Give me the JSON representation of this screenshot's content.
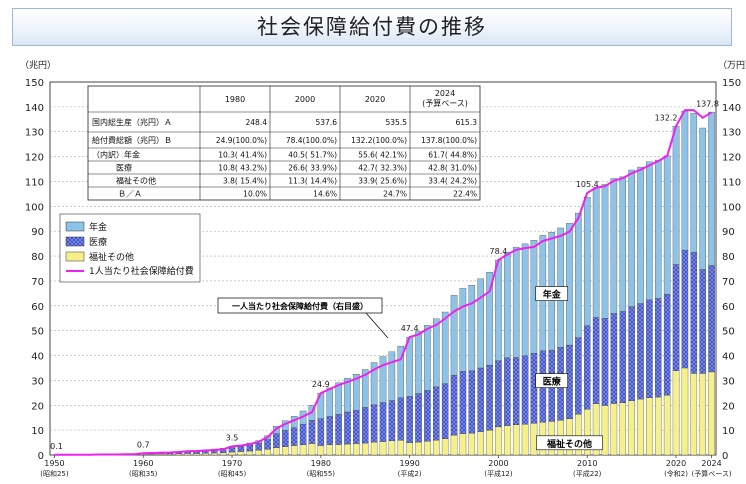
{
  "page_title": "社会保障給付費の推移",
  "chart_data": {
    "type": "bar",
    "stacked": true,
    "title": "社会保障給付費の推移",
    "y_left_unit": "（兆円）",
    "y_right_unit": "（万円）",
    "ylim_left": [
      0,
      150
    ],
    "ylim_right": [
      0,
      150
    ],
    "y_left_ticks": [
      0,
      10,
      20,
      30,
      40,
      50,
      60,
      70,
      80,
      90,
      100,
      110,
      120,
      130,
      140,
      150
    ],
    "y_right_ticks": [
      0,
      10,
      20,
      30,
      40,
      50,
      60,
      70,
      80,
      90,
      100,
      110,
      120,
      130,
      140,
      150
    ],
    "x_tick_labels": [
      {
        "year": 1950,
        "label": "1950",
        "sub": "(昭和25)"
      },
      {
        "year": 1960,
        "label": "1960",
        "sub": "(昭和35)"
      },
      {
        "year": 1970,
        "label": "1970",
        "sub": "(昭和45)"
      },
      {
        "year": 1980,
        "label": "1980",
        "sub": "(昭和55)"
      },
      {
        "year": 1990,
        "label": "1990",
        "sub": "(平成2)"
      },
      {
        "year": 2000,
        "label": "2000",
        "sub": "(平成12)"
      },
      {
        "year": 2010,
        "label": "2010",
        "sub": "(平成22)"
      },
      {
        "year": 2020,
        "label": "2020",
        "sub": "(令和2)"
      },
      {
        "year": 2024,
        "label": "2024",
        "sub": "(予算ベース)"
      }
    ],
    "legend": [
      "年金",
      "医療",
      "福祉その他",
      "1人当たり社会保障給付費"
    ],
    "legend_position": "upper-left",
    "colors": {
      "pension": "#8ec3e8",
      "medical": "#3b4fc4",
      "welfare": "#f5f08a",
      "line": "#ee22ee"
    },
    "series_labels": {
      "pension": "年金",
      "medical": "医療",
      "welfare": "福祉その他"
    },
    "line_callout": "一人当たり社会保障給付費（右目盛）",
    "x_years": [
      1950,
      1951,
      1952,
      1953,
      1954,
      1955,
      1956,
      1957,
      1958,
      1959,
      1960,
      1961,
      1962,
      1963,
      1964,
      1965,
      1966,
      1967,
      1968,
      1969,
      1970,
      1971,
      1972,
      1973,
      1974,
      1975,
      1976,
      1977,
      1978,
      1979,
      1980,
      1981,
      1982,
      1983,
      1984,
      1985,
      1986,
      1987,
      1988,
      1989,
      1990,
      1991,
      1992,
      1993,
      1994,
      1995,
      1996,
      1997,
      1998,
      1999,
      2000,
      2001,
      2002,
      2003,
      2004,
      2005,
      2006,
      2007,
      2008,
      2009,
      2010,
      2011,
      2012,
      2013,
      2014,
      2015,
      2016,
      2017,
      2018,
      2019,
      2020,
      2021,
      2022,
      2023,
      2024
    ],
    "pension": [
      0,
      0,
      0,
      0,
      0,
      0,
      0,
      0,
      0,
      0,
      0.1,
      0.1,
      0.1,
      0.1,
      0.2,
      0.2,
      0.2,
      0.3,
      0.4,
      0.4,
      0.6,
      0.7,
      0.9,
      1.1,
      1.6,
      3.0,
      3.9,
      4.6,
      5.3,
      6.0,
      10.3,
      11.5,
      12.7,
      13.6,
      14.5,
      15.3,
      17.0,
      18.5,
      19.6,
      20.8,
      23.8,
      25.0,
      26.2,
      27.4,
      28.8,
      32.1,
      33.4,
      34.4,
      35.9,
      37.4,
      40.5,
      42.5,
      44.4,
      45.0,
      45.5,
      46.4,
      47.4,
      48.0,
      49.0,
      50.1,
      51.7,
      52.3,
      53.8,
      54.3,
      54.2,
      54.9,
      54.9,
      55.5,
      55.6,
      55.6,
      55.6,
      55.9,
      55.9,
      56.9,
      61.7
    ],
    "medical": [
      0,
      0,
      0,
      0,
      0,
      0,
      0,
      0,
      0,
      0,
      0.3,
      0.3,
      0.4,
      0.5,
      0.6,
      0.7,
      0.8,
      1.0,
      1.2,
      1.4,
      1.7,
      1.9,
      2.3,
      2.8,
      3.9,
      5.7,
      6.5,
      7.2,
      8.3,
      9.4,
      10.8,
      11.4,
      12.2,
      12.9,
      13.4,
      14.3,
      15.0,
      15.7,
      16.2,
      17.1,
      18.6,
      19.5,
      20.5,
      21.4,
      22.1,
      24.1,
      25.0,
      25.1,
      25.6,
      26.1,
      26.6,
      27.3,
      27.0,
      27.5,
      28.1,
      28.7,
      28.7,
      29.3,
      29.6,
      30.8,
      33.6,
      34.7,
      35.1,
      36.2,
      36.7,
      37.9,
      38.4,
      39.4,
      39.7,
      40.7,
      42.7,
      47.4,
      48.7,
      41.8,
      42.8
    ],
    "welfare": [
      0,
      0,
      0,
      0,
      0,
      0,
      0,
      0,
      0,
      0,
      0.3,
      0.3,
      0.4,
      0.4,
      0.5,
      0.6,
      0.6,
      0.7,
      0.8,
      0.9,
      1.2,
      1.4,
      1.6,
      1.9,
      2.3,
      2.9,
      3.4,
      3.8,
      4.1,
      4.6,
      3.8,
      4.1,
      4.2,
      4.4,
      4.6,
      4.8,
      5.2,
      5.4,
      5.7,
      5.9,
      5.0,
      5.2,
      5.5,
      6.0,
      6.6,
      8.0,
      8.6,
      8.8,
      9.4,
      10.0,
      11.3,
      11.8,
      12.2,
      12.4,
      12.8,
      13.2,
      13.5,
      14.0,
      14.6,
      16.4,
      18.4,
      20.6,
      19.9,
      20.7,
      21.0,
      21.8,
      22.5,
      23.0,
      23.3,
      24.0,
      33.9,
      35.0,
      32.8,
      32.8,
      33.4
    ],
    "per_capita": [
      0.1,
      0.1,
      0.1,
      0.1,
      0.1,
      0.2,
      0.2,
      0.2,
      0.3,
      0.3,
      0.7,
      0.8,
      0.9,
      1.0,
      1.2,
      1.5,
      1.6,
      1.8,
      2.0,
      2.3,
      3.5,
      3.8,
      4.4,
      5.3,
      7.2,
      10.6,
      12.5,
      14.0,
      15.5,
      17.2,
      24.9,
      26.5,
      28.1,
      29.4,
      30.7,
      32.2,
      34.4,
      36.1,
      37.3,
      38.5,
      47.4,
      48.5,
      50.7,
      52.3,
      54.9,
      57.7,
      59.7,
      61.0,
      63.3,
      65.8,
      78.4,
      80.6,
      82.5,
      83.2,
      83.7,
      86.0,
      87.1,
      88.1,
      89.8,
      95.3,
      105.4,
      107.5,
      108.1,
      110.3,
      111.3,
      113.3,
      114.7,
      116.5,
      118.2,
      120.3,
      132.2,
      138.7,
      138.7,
      135.6,
      137.8
    ],
    "point_labels": [
      {
        "year": 1950,
        "value": 0.1
      },
      {
        "year": 1960,
        "value": 0.7
      },
      {
        "year": 1970,
        "value": 3.5
      },
      {
        "year": 1980,
        "value": 24.9
      },
      {
        "year": 1990,
        "value": 47.4
      },
      {
        "year": 2000,
        "value": 78.4
      },
      {
        "year": 2010,
        "value": 105.4
      },
      {
        "year": 2020,
        "value": 132.2
      },
      {
        "year": 2024,
        "value": 137.8
      }
    ]
  },
  "table": {
    "headers": [
      "",
      "1980",
      "2000",
      "2020",
      "2024\n(予算ベース)"
    ],
    "rows": [
      [
        "国内総生産（兆円）Ａ",
        "248.4",
        "537.6",
        "535.5",
        "615.3"
      ],
      [
        "給付費総額（兆円）Ｂ",
        "24.9(100.0%)",
        "78.4(100.0%)",
        "132.2(100.0%)",
        "137.8(100.0%)"
      ],
      [
        "（内訳）年金",
        "10.3( 41.4%)",
        "40.5( 51.7%)",
        "55.6( 42.1%)",
        "61.7( 44.8%)"
      ],
      [
        "医療",
        "10.8( 43.2%)",
        "26.6( 33.9%)",
        "42.7( 32.3%)",
        "42.8( 31.0%)"
      ],
      [
        "福祉その他",
        "3.8( 15.4%)",
        "11.3( 14.4%)",
        "33.9( 25.6%)",
        "33.4( 24.2%)"
      ],
      [
        "Ｂ／Ａ",
        "10.0%",
        "14.6%",
        "24.7%",
        "22.4%"
      ]
    ]
  }
}
